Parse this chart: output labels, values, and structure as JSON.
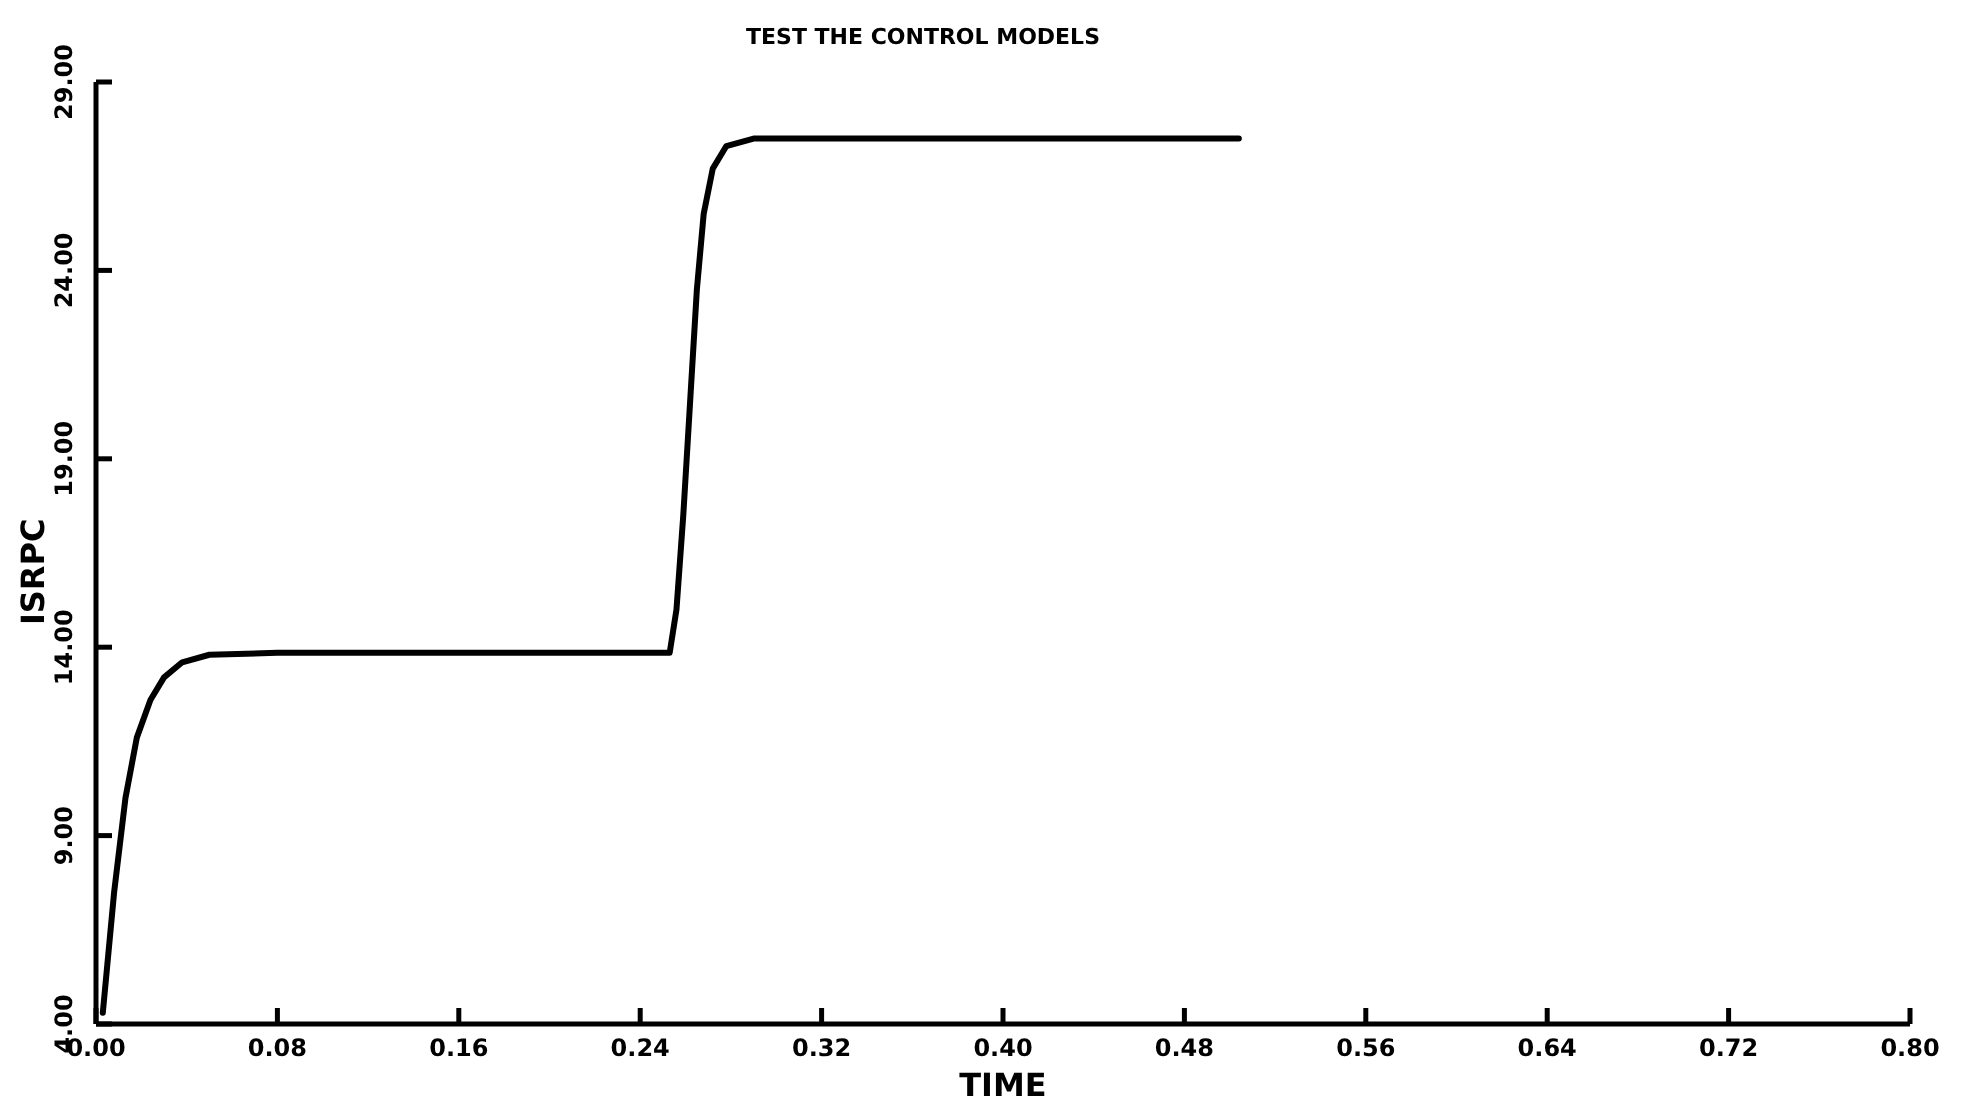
{
  "chart_data": {
    "type": "line",
    "title": "TEST THE CONTROL MODELS",
    "xlabel": "TIME",
    "ylabel": "ISRPC",
    "xlim": [
      0,
      0.8
    ],
    "xticks": [
      {
        "value": 0,
        "label": "0.00"
      },
      {
        "value": 0.08,
        "label": "0.08"
      },
      {
        "value": 0.16,
        "label": "0.16"
      },
      {
        "value": 0.24,
        "label": "0.24"
      },
      {
        "value": 0.32,
        "label": "0.32"
      },
      {
        "value": 0.4,
        "label": "0.40"
      },
      {
        "value": 0.48,
        "label": "0.48"
      },
      {
        "value": 0.56,
        "label": "0.56"
      },
      {
        "value": 0.64,
        "label": "0.64"
      },
      {
        "value": 0.72,
        "label": "0.72"
      },
      {
        "value": 0.8,
        "label": "0.80"
      }
    ],
    "ylim": [
      4,
      29
    ],
    "yticks": [
      {
        "value": 4,
        "label": "4.00"
      },
      {
        "value": 9,
        "label": "9.00"
      },
      {
        "value": 14,
        "label": "14.00"
      },
      {
        "value": 19,
        "label": "19.00"
      },
      {
        "value": 24,
        "label": "24.00"
      },
      {
        "value": 29,
        "label": "29.00"
      }
    ],
    "grid": false,
    "series": [
      {
        "color": "#000000",
        "x": [
          0.003,
          0.008,
          0.013,
          0.018,
          0.024,
          0.03,
          0.038,
          0.05,
          0.08,
          0.253,
          0.256,
          0.259,
          0.262,
          0.265,
          0.268,
          0.272,
          0.278,
          0.29,
          0.504
        ],
        "values": [
          4.3,
          7.5,
          10,
          11.6,
          12.6,
          13.2,
          13.6,
          13.8,
          13.85,
          13.85,
          15,
          17.5,
          20.5,
          23.5,
          25.5,
          26.7,
          27.3,
          27.5,
          27.5
        ]
      }
    ]
  }
}
